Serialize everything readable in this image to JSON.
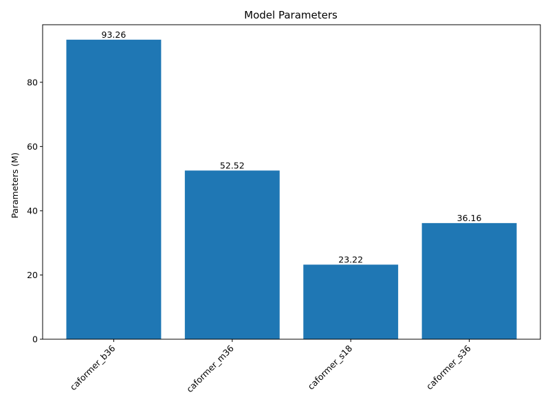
{
  "chart_data": {
    "type": "bar",
    "title": "Model Parameters",
    "xlabel": "",
    "ylabel": "Parameters (M)",
    "categories": [
      "caformer_b36",
      "caformer_m36",
      "caformer_s18",
      "caformer_s36"
    ],
    "values": [
      93.26,
      52.52,
      23.22,
      36.16
    ],
    "value_labels": [
      "93.26",
      "52.52",
      "23.22",
      "36.16"
    ],
    "ylim": [
      0,
      97.92
    ],
    "yticks": [
      0,
      20,
      40,
      60,
      80
    ],
    "ytick_labels": [
      "0",
      "20",
      "40",
      "60",
      "80"
    ],
    "grid": false,
    "bar_color": "#1f77b4"
  }
}
